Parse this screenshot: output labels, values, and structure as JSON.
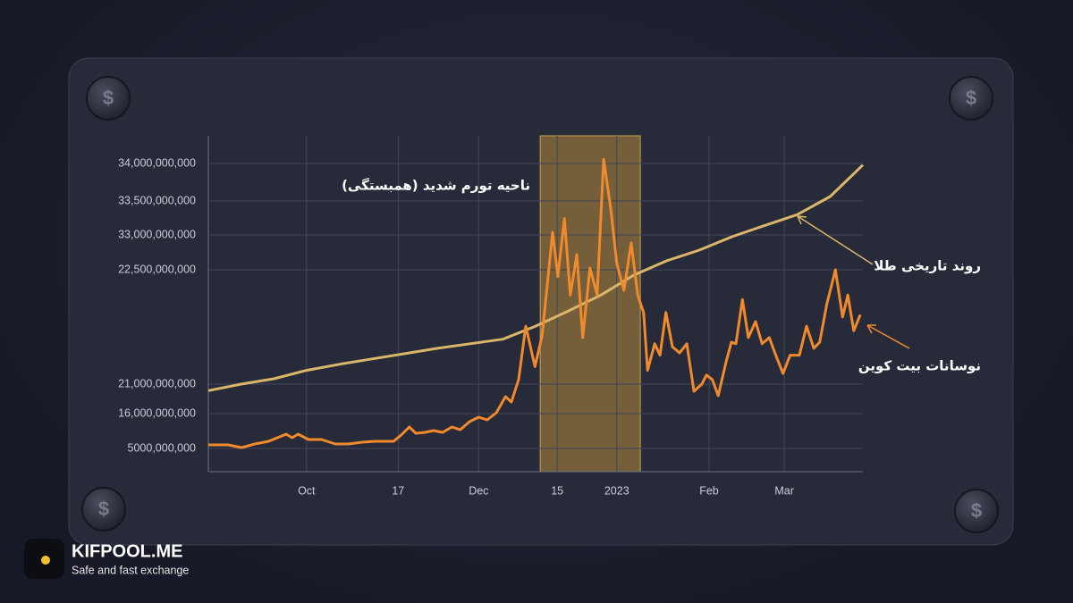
{
  "chart_data": {
    "type": "line",
    "annotation": "ناحیه تورم شدید (همبستگی)",
    "highlight": {
      "x": [
        50.7,
        66.0
      ],
      "color": "#b48a3c"
    },
    "brand": {
      "name": "KIFPOOL.ME",
      "tagline": "Safe and fast exchange"
    },
    "xlim": [
      0,
      100
    ],
    "xticks": [
      {
        "value": 15.0,
        "label": "Oct"
      },
      {
        "value": 29.0,
        "label": "17"
      },
      {
        "value": 41.3,
        "label": "Dec"
      },
      {
        "value": 53.3,
        "label": "15"
      },
      {
        "value": 62.4,
        "label": "2023"
      },
      {
        "value": 76.5,
        "label": "Feb"
      },
      {
        "value": 88.0,
        "label": "Mar"
      }
    ],
    "ylim": [
      0,
      34400000000
    ],
    "yticks": [
      {
        "value": 5000000000,
        "label": "5000,000,000"
      },
      {
        "value": 16000000000,
        "label": "16,000,000,000"
      },
      {
        "value": 21000000000,
        "label": "21,000,000,000"
      },
      {
        "value": 22500000000,
        "label": "22,500,000,000"
      },
      {
        "value": 33000000000,
        "label": "33,000,000,000"
      },
      {
        "value": 33500000000,
        "label": "33,500,000,000"
      },
      {
        "value": 34000000000,
        "label": "34,000,000,000"
      }
    ],
    "grid": true,
    "series": [
      {
        "name": "روند تاریخی طلا",
        "color": "#d9b66a",
        "x": [
          0,
          5,
          10,
          15,
          20,
          25,
          30,
          35,
          40,
          45,
          50,
          55,
          60,
          65,
          70,
          75,
          80,
          85,
          90,
          95,
          100
        ],
        "values": [
          19900000000,
          21000000000,
          21070000000,
          21180000000,
          21260000000,
          21330000000,
          21400000000,
          21470000000,
          21530000000,
          21590000000,
          21760000000,
          21960000000,
          22170000000,
          22430000000,
          25190000000,
          28420000000,
          32460000000,
          33140000000,
          33300000000,
          33560000000,
          33980000000
        ]
      },
      {
        "name": "نوسانات بیت کوین",
        "color": "#f08a2c",
        "x": [
          0,
          3.0,
          5.1,
          7.1,
          9.2,
          11.9,
          12.8,
          13.7,
          15.3,
          17.3,
          19.4,
          21.4,
          23.5,
          25.5,
          28.3,
          29.6,
          30.7,
          31.7,
          33.1,
          34.4,
          35.8,
          37.2,
          38.5,
          39.9,
          41.3,
          42.6,
          44.0,
          45.4,
          46.3,
          47.4,
          48.5,
          49.9,
          51.0,
          52.6,
          53.4,
          54.4,
          55.3,
          56.3,
          57.2,
          58.3,
          59.4,
          60.4,
          61.5,
          62.4,
          63.5,
          64.6,
          65.6,
          66.5,
          67.1,
          68.2,
          69.0,
          69.9,
          70.9,
          72.0,
          73.1,
          74.2,
          75.4,
          76.1,
          77.0,
          77.9,
          79.1,
          79.9,
          80.6,
          81.6,
          82.5,
          83.6,
          84.6,
          85.7,
          86.7,
          87.8,
          88.9,
          90.3,
          91.4,
          92.5,
          93.4,
          94.5,
          95.8,
          96.9,
          97.7,
          98.6,
          99.6
        ],
        "values": [
          6130000000,
          6130000000,
          5280000000,
          6410000000,
          7260000000,
          9510000000,
          8390000000,
          9510000000,
          7820000000,
          7820000000,
          6410000000,
          6410000000,
          6970000000,
          7260000000,
          7260000000,
          9510000000,
          11770000000,
          9800000000,
          10080000000,
          10640000000,
          10080000000,
          11770000000,
          10920000000,
          13460000000,
          14870000000,
          14030000000,
          16150000000,
          18880000000,
          17970000000,
          21060000000,
          21760000000,
          21230000000,
          21640000000,
          33040000000,
          22410000000,
          33240000000,
          22170000000,
          27080000000,
          21610000000,
          23040000000,
          22170000000,
          34060000000,
          33370000000,
          24380000000,
          22230000000,
          30580000000,
          22170000000,
          21940000000,
          21180000000,
          21530000000,
          21380000000,
          21940000000,
          21490000000,
          21410000000,
          21530000000,
          19790000000,
          21000000000,
          21120000000,
          21060000000,
          19030000000,
          21290000000,
          21550000000,
          21530000000,
          22110000000,
          21610000000,
          21820000000,
          21530000000,
          21610000000,
          21380000000,
          21140000000,
          21380000000,
          21380000000,
          21760000000,
          21470000000,
          21550000000,
          22050000000,
          22500000000,
          21880000000,
          22170000000,
          21700000000,
          21910000000
        ]
      }
    ]
  }
}
